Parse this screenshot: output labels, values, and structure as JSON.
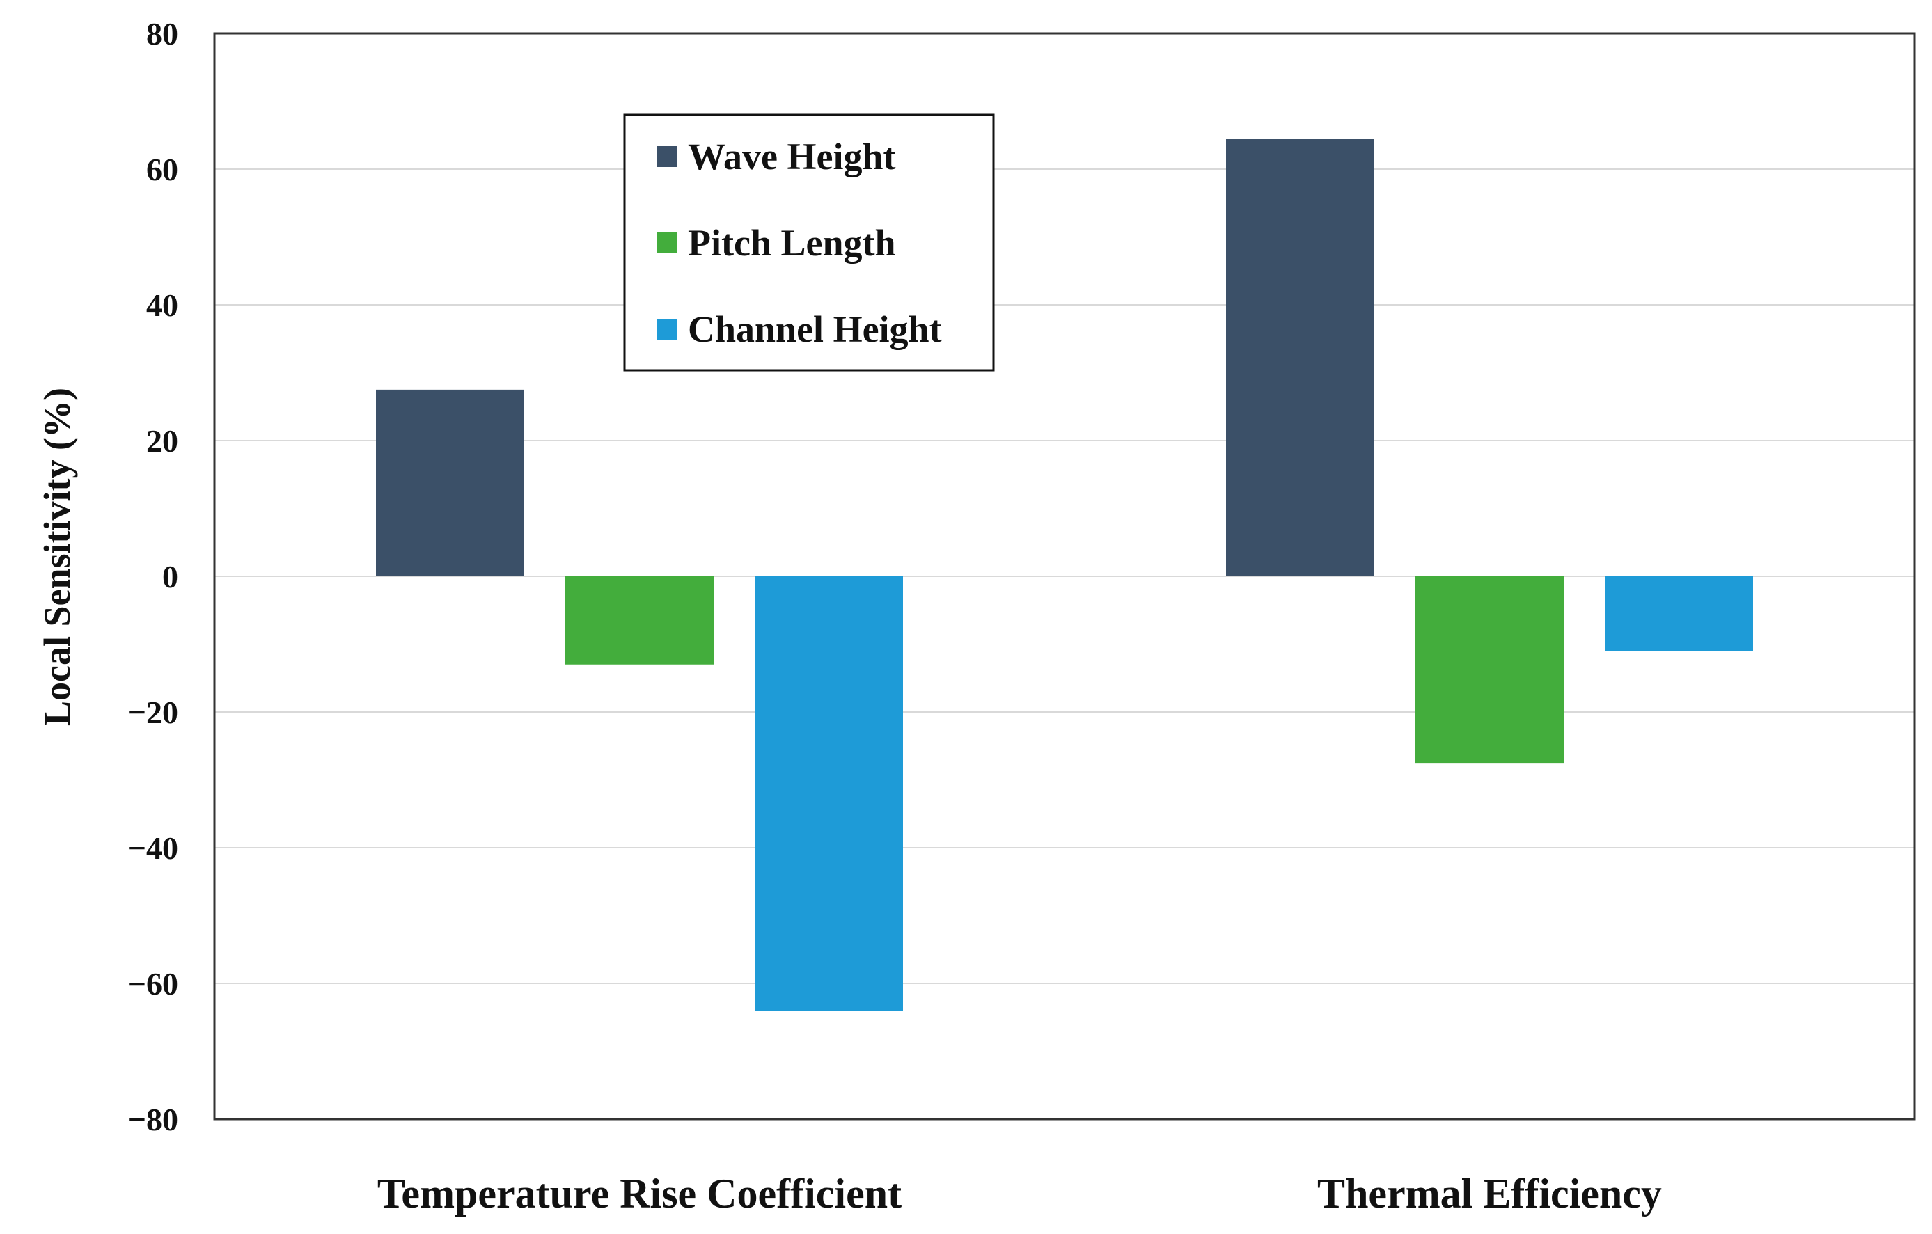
{
  "chart_data": {
    "type": "bar",
    "title": "",
    "xlabel": "",
    "ylabel": "Local Sensitivity (%)",
    "ylim": [
      -80,
      80
    ],
    "yticks": [
      80,
      60,
      40,
      20,
      0,
      -20,
      -40,
      -60,
      -80
    ],
    "ytick_labels": [
      "80",
      "60",
      "40",
      "20",
      "0",
      "−20",
      "−40",
      "−60",
      "−80"
    ],
    "grid": true,
    "legend_position": "top-left",
    "categories": [
      "Temperature Rise Coefficient",
      "Thermal Efficiency"
    ],
    "series": [
      {
        "name": "Wave Height",
        "color": "#3b5068",
        "values": [
          27.5,
          64.5
        ]
      },
      {
        "name": "Pitch Length",
        "color": "#43ad3c",
        "values": [
          -13,
          -27.5
        ]
      },
      {
        "name": "Channel Height",
        "color": "#1e9bd7",
        "values": [
          -64,
          -11
        ]
      }
    ]
  }
}
